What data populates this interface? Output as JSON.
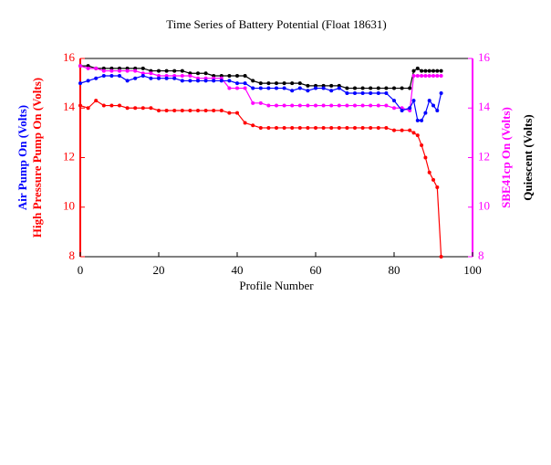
{
  "chart_data": {
    "type": "line",
    "title": "Time Series of Battery Potential (Float 18631)",
    "x_label": "Profile Number",
    "y_labels": [
      {
        "text": "Air Pump On (Volts)",
        "color": "#0000ff"
      },
      {
        "text": "High Pressure Pump On (Volts)",
        "color": "#ff0000"
      }
    ],
    "y2_labels": [
      {
        "text": "SBE41cp On (Volts)",
        "color": "#ff00ff"
      },
      {
        "text": "Quiescent (Volts)",
        "color": "#000000"
      }
    ],
    "y_axis_color": "#ff0000",
    "y2_axis_color": "#ff00ff",
    "xlim": [
      0,
      100
    ],
    "xticks": [
      0,
      20,
      40,
      60,
      80,
      100
    ],
    "ylim": [
      8,
      16
    ],
    "yticks": [
      8,
      10,
      12,
      14,
      16
    ],
    "y2lim": [
      8,
      16
    ],
    "y2ticks": [
      8,
      10,
      12,
      14,
      16
    ],
    "x": [
      0,
      2,
      4,
      6,
      8,
      10,
      12,
      14,
      16,
      18,
      20,
      22,
      24,
      26,
      28,
      30,
      32,
      34,
      36,
      38,
      40,
      42,
      44,
      46,
      48,
      50,
      52,
      54,
      56,
      58,
      60,
      62,
      64,
      66,
      68,
      70,
      72,
      74,
      76,
      78,
      80,
      82,
      84,
      85,
      86,
      87,
      88,
      89,
      90,
      91,
      92
    ],
    "series": [
      {
        "name": "Quiescent",
        "color": "#000000",
        "axis": "y2",
        "values": [
          15.7,
          15.7,
          15.6,
          15.6,
          15.6,
          15.6,
          15.6,
          15.6,
          15.6,
          15.5,
          15.5,
          15.5,
          15.5,
          15.5,
          15.4,
          15.4,
          15.4,
          15.3,
          15.3,
          15.3,
          15.3,
          15.3,
          15.1,
          15.0,
          15.0,
          15.0,
          15.0,
          15.0,
          15.0,
          14.9,
          14.9,
          14.9,
          14.9,
          14.9,
          14.8,
          14.8,
          14.8,
          14.8,
          14.8,
          14.8,
          14.8,
          14.8,
          14.8,
          15.5,
          15.6,
          15.5,
          15.5,
          15.5,
          15.5,
          15.5,
          15.5
        ]
      },
      {
        "name": "SBE41cp On",
        "color": "#ff00ff",
        "axis": "y2",
        "values": [
          15.7,
          15.6,
          15.6,
          15.5,
          15.5,
          15.5,
          15.5,
          15.5,
          15.4,
          15.4,
          15.3,
          15.3,
          15.3,
          15.3,
          15.3,
          15.2,
          15.2,
          15.2,
          15.2,
          14.8,
          14.8,
          14.8,
          14.2,
          14.2,
          14.1,
          14.1,
          14.1,
          14.1,
          14.1,
          14.1,
          14.1,
          14.1,
          14.1,
          14.1,
          14.1,
          14.1,
          14.1,
          14.1,
          14.1,
          14.1,
          14.0,
          14.0,
          13.9,
          15.3,
          15.3,
          15.3,
          15.3,
          15.3,
          15.3,
          15.3,
          15.3
        ]
      },
      {
        "name": "Air Pump On",
        "color": "#0000ff",
        "values": [
          15.0,
          15.1,
          15.2,
          15.3,
          15.3,
          15.3,
          15.1,
          15.2,
          15.3,
          15.2,
          15.2,
          15.2,
          15.2,
          15.1,
          15.1,
          15.1,
          15.1,
          15.1,
          15.1,
          15.1,
          15.0,
          15.0,
          14.8,
          14.8,
          14.8,
          14.8,
          14.8,
          14.7,
          14.8,
          14.7,
          14.8,
          14.8,
          14.7,
          14.8,
          14.6,
          14.6,
          14.6,
          14.6,
          14.6,
          14.6,
          14.3,
          13.9,
          14.0,
          14.3,
          13.5,
          13.5,
          13.8,
          14.3,
          14.1,
          13.9,
          14.6
        ]
      },
      {
        "name": "High Pressure Pump On",
        "color": "#ff0000",
        "values": [
          14.1,
          14.0,
          14.3,
          14.1,
          14.1,
          14.1,
          14.0,
          14.0,
          14.0,
          14.0,
          13.9,
          13.9,
          13.9,
          13.9,
          13.9,
          13.9,
          13.9,
          13.9,
          13.9,
          13.8,
          13.8,
          13.4,
          13.3,
          13.2,
          13.2,
          13.2,
          13.2,
          13.2,
          13.2,
          13.2,
          13.2,
          13.2,
          13.2,
          13.2,
          13.2,
          13.2,
          13.2,
          13.2,
          13.2,
          13.2,
          13.1,
          13.1,
          13.1,
          13.0,
          12.9,
          12.5,
          12.0,
          11.4,
          11.1,
          10.8,
          8.0
        ]
      }
    ]
  }
}
